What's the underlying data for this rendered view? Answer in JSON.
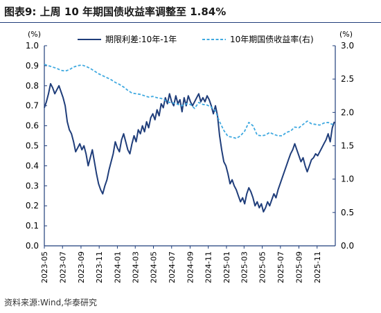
{
  "figure": {
    "title": "图表9:  上周 10 年期国债收益率调整至 1.84%",
    "source": "资料来源:Wind,华泰研究"
  },
  "chart_data": {
    "type": "line",
    "left_unit": "(%)",
    "right_unit": "(%)",
    "ylim_left": [
      0,
      1.0
    ],
    "ylim_right": [
      0,
      3.0
    ],
    "left_ticks": [
      "0.0",
      "0.1",
      "0.2",
      "0.3",
      "0.4",
      "0.5",
      "0.6",
      "0.7",
      "0.8",
      "0.9",
      "1.0"
    ],
    "right_ticks": [
      "0.0",
      "0.5",
      "1.0",
      "1.5",
      "2.0",
      "2.5",
      "3.0"
    ],
    "x_ticks": [
      "2023-05",
      "2023-07",
      "2023-09",
      "2023-11",
      "2024-01",
      "2024-03",
      "2024-05",
      "2024-07",
      "2024-09",
      "2024-11",
      "2025-01",
      "2025-03",
      "2025-05",
      "2025-07",
      "2025-09",
      "2025-11"
    ],
    "legend_position": "top",
    "colors": {
      "spread": "#1f3d7a",
      "yield10y": "#3fa9e0",
      "frame": "#1f3d7a"
    },
    "series": [
      {
        "name": "期限利差:10年-1年",
        "axis": "left",
        "points": [
          [
            "2023-05-01",
            0.69
          ],
          [
            "2023-05-08",
            0.72
          ],
          [
            "2023-05-15",
            0.76
          ],
          [
            "2023-05-22",
            0.81
          ],
          [
            "2023-05-29",
            0.79
          ],
          [
            "2023-06-05",
            0.76
          ],
          [
            "2023-06-12",
            0.78
          ],
          [
            "2023-06-19",
            0.8
          ],
          [
            "2023-06-26",
            0.77
          ],
          [
            "2023-07-03",
            0.74
          ],
          [
            "2023-07-10",
            0.7
          ],
          [
            "2023-07-17",
            0.62
          ],
          [
            "2023-07-24",
            0.58
          ],
          [
            "2023-07-31",
            0.56
          ],
          [
            "2023-08-07",
            0.52
          ],
          [
            "2023-08-14",
            0.47
          ],
          [
            "2023-08-21",
            0.49
          ],
          [
            "2023-08-28",
            0.51
          ],
          [
            "2023-09-04",
            0.48
          ],
          [
            "2023-09-11",
            0.5
          ],
          [
            "2023-09-18",
            0.46
          ],
          [
            "2023-09-25",
            0.4
          ],
          [
            "2023-10-02",
            0.44
          ],
          [
            "2023-10-09",
            0.48
          ],
          [
            "2023-10-16",
            0.42
          ],
          [
            "2023-10-23",
            0.36
          ],
          [
            "2023-10-30",
            0.31
          ],
          [
            "2023-11-06",
            0.28
          ],
          [
            "2023-11-13",
            0.26
          ],
          [
            "2023-11-20",
            0.3
          ],
          [
            "2023-11-27",
            0.33
          ],
          [
            "2023-12-04",
            0.38
          ],
          [
            "2023-12-11",
            0.42
          ],
          [
            "2023-12-18",
            0.46
          ],
          [
            "2023-12-25",
            0.52
          ],
          [
            "2024-01-01",
            0.49
          ],
          [
            "2024-01-08",
            0.47
          ],
          [
            "2024-01-15",
            0.53
          ],
          [
            "2024-01-22",
            0.56
          ],
          [
            "2024-01-29",
            0.52
          ],
          [
            "2024-02-05",
            0.48
          ],
          [
            "2024-02-12",
            0.46
          ],
          [
            "2024-02-19",
            0.51
          ],
          [
            "2024-02-26",
            0.55
          ],
          [
            "2024-03-04",
            0.52
          ],
          [
            "2024-03-11",
            0.58
          ],
          [
            "2024-03-18",
            0.56
          ],
          [
            "2024-03-25",
            0.6
          ],
          [
            "2024-04-01",
            0.57
          ],
          [
            "2024-04-08",
            0.62
          ],
          [
            "2024-04-15",
            0.59
          ],
          [
            "2024-04-22",
            0.64
          ],
          [
            "2024-04-29",
            0.66
          ],
          [
            "2024-05-06",
            0.63
          ],
          [
            "2024-05-13",
            0.68
          ],
          [
            "2024-05-20",
            0.65
          ],
          [
            "2024-05-27",
            0.71
          ],
          [
            "2024-06-03",
            0.69
          ],
          [
            "2024-06-10",
            0.74
          ],
          [
            "2024-06-17",
            0.71
          ],
          [
            "2024-06-24",
            0.76
          ],
          [
            "2024-07-01",
            0.72
          ],
          [
            "2024-07-08",
            0.7
          ],
          [
            "2024-07-15",
            0.75
          ],
          [
            "2024-07-22",
            0.71
          ],
          [
            "2024-07-29",
            0.73
          ],
          [
            "2024-08-05",
            0.67
          ],
          [
            "2024-08-12",
            0.74
          ],
          [
            "2024-08-19",
            0.7
          ],
          [
            "2024-08-26",
            0.75
          ],
          [
            "2024-09-02",
            0.72
          ],
          [
            "2024-09-09",
            0.7
          ],
          [
            "2024-09-16",
            0.72
          ],
          [
            "2024-09-23",
            0.74
          ],
          [
            "2024-09-30",
            0.76
          ],
          [
            "2024-10-07",
            0.72
          ],
          [
            "2024-10-14",
            0.74
          ],
          [
            "2024-10-21",
            0.72
          ],
          [
            "2024-10-28",
            0.75
          ],
          [
            "2024-11-04",
            0.73
          ],
          [
            "2024-11-11",
            0.7
          ],
          [
            "2024-11-18",
            0.66
          ],
          [
            "2024-11-25",
            0.7
          ],
          [
            "2024-12-02",
            0.65
          ],
          [
            "2024-12-09",
            0.55
          ],
          [
            "2024-12-16",
            0.48
          ],
          [
            "2024-12-23",
            0.42
          ],
          [
            "2024-12-30",
            0.4
          ],
          [
            "2025-01-06",
            0.36
          ],
          [
            "2025-01-13",
            0.31
          ],
          [
            "2025-01-20",
            0.33
          ],
          [
            "2025-01-27",
            0.3
          ],
          [
            "2025-02-03",
            0.28
          ],
          [
            "2025-02-10",
            0.25
          ],
          [
            "2025-02-17",
            0.22
          ],
          [
            "2025-02-24",
            0.24
          ],
          [
            "2025-03-03",
            0.21
          ],
          [
            "2025-03-10",
            0.26
          ],
          [
            "2025-03-17",
            0.29
          ],
          [
            "2025-03-24",
            0.27
          ],
          [
            "2025-03-31",
            0.24
          ],
          [
            "2025-04-07",
            0.2
          ],
          [
            "2025-04-14",
            0.22
          ],
          [
            "2025-04-21",
            0.19
          ],
          [
            "2025-04-28",
            0.21
          ],
          [
            "2025-05-05",
            0.17
          ],
          [
            "2025-05-12",
            0.19
          ],
          [
            "2025-05-19",
            0.22
          ],
          [
            "2025-05-26",
            0.2
          ],
          [
            "2025-06-02",
            0.23
          ],
          [
            "2025-06-09",
            0.26
          ],
          [
            "2025-06-16",
            0.24
          ],
          [
            "2025-06-23",
            0.28
          ],
          [
            "2025-06-30",
            0.31
          ],
          [
            "2025-07-07",
            0.34
          ],
          [
            "2025-07-14",
            0.37
          ],
          [
            "2025-07-21",
            0.4
          ],
          [
            "2025-07-28",
            0.43
          ],
          [
            "2025-08-04",
            0.46
          ],
          [
            "2025-08-11",
            0.48
          ],
          [
            "2025-08-18",
            0.51
          ],
          [
            "2025-08-25",
            0.48
          ],
          [
            "2025-09-01",
            0.45
          ],
          [
            "2025-09-08",
            0.42
          ],
          [
            "2025-09-15",
            0.44
          ],
          [
            "2025-09-22",
            0.4
          ],
          [
            "2025-09-29",
            0.37
          ],
          [
            "2025-10-06",
            0.4
          ],
          [
            "2025-10-13",
            0.43
          ],
          [
            "2025-10-20",
            0.44
          ],
          [
            "2025-10-27",
            0.46
          ],
          [
            "2025-11-03",
            0.45
          ],
          [
            "2025-11-10",
            0.47
          ],
          [
            "2025-11-17",
            0.49
          ],
          [
            "2025-11-24",
            0.51
          ],
          [
            "2025-12-01",
            0.53
          ],
          [
            "2025-12-08",
            0.56
          ],
          [
            "2025-12-15",
            0.52
          ],
          [
            "2025-12-22",
            0.59
          ],
          [
            "2025-12-29",
            0.62
          ]
        ]
      },
      {
        "name": "10年期国债收益率(右)",
        "axis": "right",
        "points": [
          [
            "2023-05-01",
            2.72
          ],
          [
            "2023-05-15",
            2.7
          ],
          [
            "2023-05-29",
            2.68
          ],
          [
            "2023-06-12",
            2.66
          ],
          [
            "2023-06-26",
            2.63
          ],
          [
            "2023-07-10",
            2.62
          ],
          [
            "2023-07-24",
            2.64
          ],
          [
            "2023-08-07",
            2.68
          ],
          [
            "2023-08-21",
            2.7
          ],
          [
            "2023-09-04",
            2.71
          ],
          [
            "2023-09-18",
            2.69
          ],
          [
            "2023-10-02",
            2.66
          ],
          [
            "2023-10-16",
            2.62
          ],
          [
            "2023-10-30",
            2.58
          ],
          [
            "2023-11-13",
            2.55
          ],
          [
            "2023-11-27",
            2.52
          ],
          [
            "2023-12-11",
            2.49
          ],
          [
            "2023-12-25",
            2.45
          ],
          [
            "2024-01-08",
            2.42
          ],
          [
            "2024-01-22",
            2.38
          ],
          [
            "2024-02-05",
            2.33
          ],
          [
            "2024-02-19",
            2.29
          ],
          [
            "2024-03-04",
            2.28
          ],
          [
            "2024-03-18",
            2.27
          ],
          [
            "2024-04-01",
            2.25
          ],
          [
            "2024-04-15",
            2.23
          ],
          [
            "2024-04-29",
            2.24
          ],
          [
            "2024-05-13",
            2.22
          ],
          [
            "2024-05-27",
            2.21
          ],
          [
            "2024-06-10",
            2.18
          ],
          [
            "2024-06-24",
            2.15
          ],
          [
            "2024-07-08",
            2.14
          ],
          [
            "2024-07-22",
            2.12
          ],
          [
            "2024-08-05",
            2.1
          ],
          [
            "2024-08-19",
            2.13
          ],
          [
            "2024-09-02",
            2.12
          ],
          [
            "2024-09-16",
            2.06
          ],
          [
            "2024-09-30",
            2.15
          ],
          [
            "2024-10-14",
            2.12
          ],
          [
            "2024-10-28",
            2.11
          ],
          [
            "2024-11-11",
            2.08
          ],
          [
            "2024-11-25",
            2.02
          ],
          [
            "2024-12-09",
            1.86
          ],
          [
            "2024-12-23",
            1.73
          ],
          [
            "2025-01-06",
            1.64
          ],
          [
            "2025-01-20",
            1.63
          ],
          [
            "2025-02-03",
            1.61
          ],
          [
            "2025-02-17",
            1.65
          ],
          [
            "2025-03-03",
            1.72
          ],
          [
            "2025-03-17",
            1.85
          ],
          [
            "2025-03-31",
            1.8
          ],
          [
            "2025-04-14",
            1.66
          ],
          [
            "2025-04-28",
            1.65
          ],
          [
            "2025-05-12",
            1.66
          ],
          [
            "2025-05-26",
            1.7
          ],
          [
            "2025-06-09",
            1.67
          ],
          [
            "2025-06-23",
            1.65
          ],
          [
            "2025-07-07",
            1.65
          ],
          [
            "2025-07-21",
            1.7
          ],
          [
            "2025-08-04",
            1.72
          ],
          [
            "2025-08-18",
            1.78
          ],
          [
            "2025-09-01",
            1.77
          ],
          [
            "2025-09-15",
            1.82
          ],
          [
            "2025-09-29",
            1.87
          ],
          [
            "2025-10-13",
            1.83
          ],
          [
            "2025-10-27",
            1.82
          ],
          [
            "2025-11-10",
            1.81
          ],
          [
            "2025-11-24",
            1.84
          ],
          [
            "2025-12-08",
            1.85
          ],
          [
            "2025-12-22",
            1.82
          ],
          [
            "2025-12-29",
            1.84
          ]
        ]
      }
    ]
  }
}
